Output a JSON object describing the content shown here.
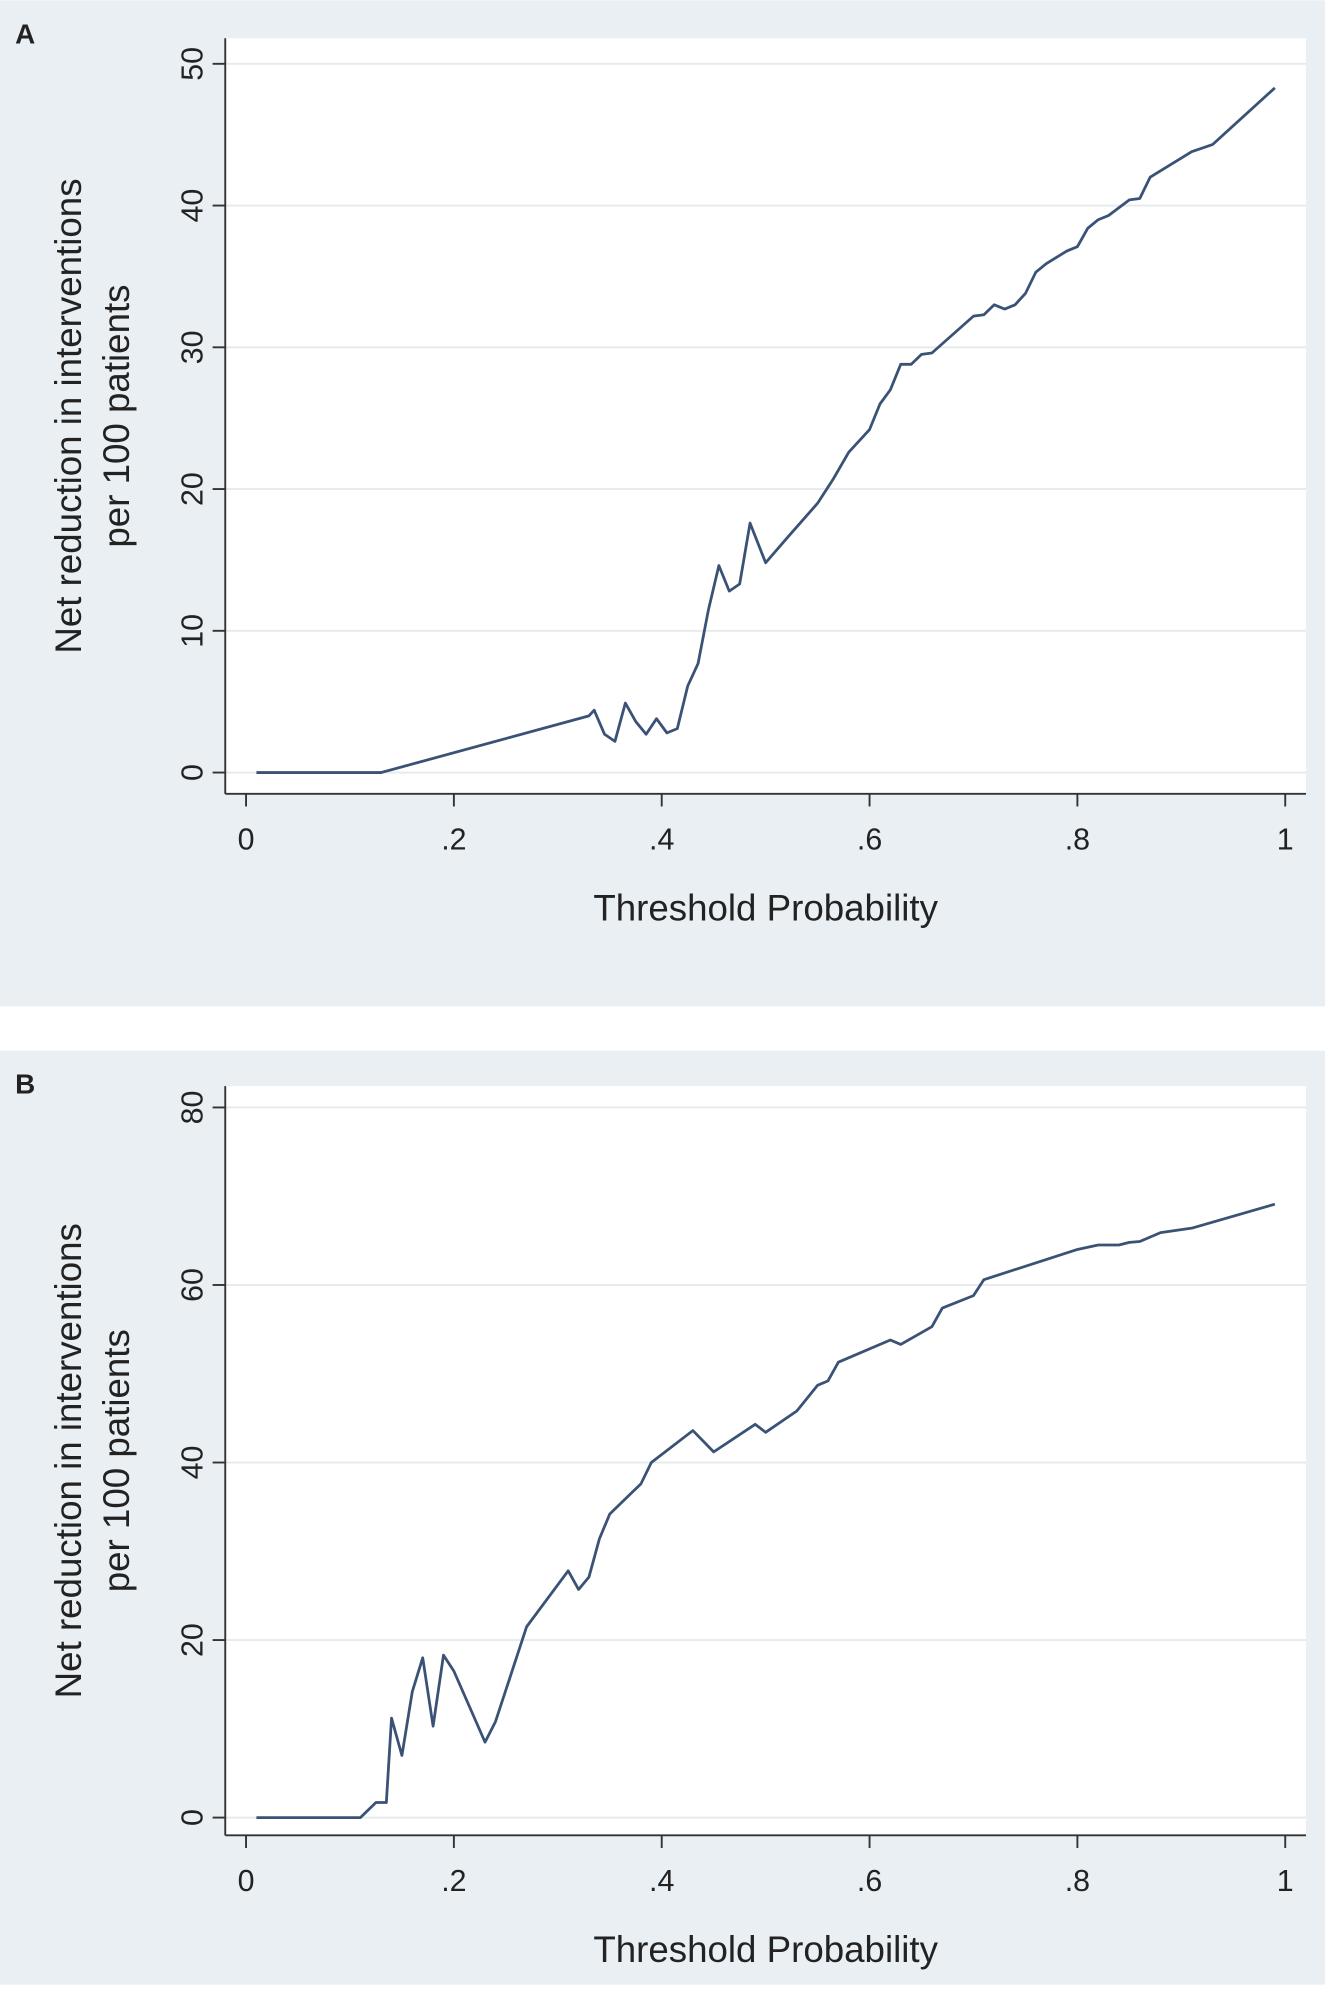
{
  "chart_data": [
    {
      "type": "line",
      "label": "A",
      "xlabel": "Threshold Probability",
      "ylabel": [
        "Net reduction in interventions",
        "per 100 patients"
      ],
      "xlim": [
        -0.02,
        1.02
      ],
      "ylim": [
        -1.5,
        51.8
      ],
      "xticks": [
        0,
        {
          "value": 0.2,
          "label": ".2"
        },
        {
          "value": 0.4,
          "label": ".4"
        },
        {
          "value": 0.6,
          "label": ".6"
        },
        {
          "value": 0.8,
          "label": ".8"
        },
        1
      ],
      "yticks": [
        0,
        10,
        20,
        30,
        40,
        50
      ],
      "grid": true,
      "series": [
        {
          "color": "#3a5275",
          "x": [
            0.01,
            0.13,
            0.33,
            0.335,
            0.345,
            0.355,
            0.365,
            0.375,
            0.385,
            0.395,
            0.405,
            0.415,
            0.425,
            0.435,
            0.445,
            0.455,
            0.465,
            0.475,
            0.485,
            0.5,
            0.52,
            0.55,
            0.565,
            0.58,
            0.6,
            0.61,
            0.62,
            0.63,
            0.64,
            0.65,
            0.66,
            0.7,
            0.71,
            0.72,
            0.73,
            0.74,
            0.75,
            0.76,
            0.77,
            0.79,
            0.8,
            0.81,
            0.82,
            0.83,
            0.85,
            0.86,
            0.87,
            0.89,
            0.91,
            0.93,
            0.99
          ],
          "values": [
            0,
            0,
            4.0,
            4.4,
            2.7,
            2.2,
            4.9,
            3.6,
            2.7,
            3.8,
            2.8,
            3.1,
            6.1,
            7.7,
            11.5,
            14.6,
            12.8,
            13.3,
            17.6,
            14.8,
            16.5,
            19.0,
            20.7,
            22.6,
            24.2,
            26.0,
            27.0,
            28.8,
            28.8,
            29.5,
            29.6,
            32.2,
            32.3,
            33.0,
            32.7,
            33.0,
            33.8,
            35.3,
            35.9,
            36.8,
            37.1,
            38.4,
            39.0,
            39.3,
            40.4,
            40.5,
            42.0,
            42.9,
            43.8,
            44.3,
            48.3
          ]
        }
      ]
    },
    {
      "type": "line",
      "label": "B",
      "xlabel": "Threshold Probability",
      "ylabel": [
        "Net reduction in interventions",
        "per 100 patients"
      ],
      "xlim": [
        -0.02,
        1.02
      ],
      "ylim": [
        -2,
        82.4
      ],
      "xticks": [
        0,
        {
          "value": 0.2,
          "label": ".2"
        },
        {
          "value": 0.4,
          "label": ".4"
        },
        {
          "value": 0.6,
          "label": ".6"
        },
        {
          "value": 0.8,
          "label": ".8"
        },
        1
      ],
      "yticks": [
        0,
        20,
        40,
        60,
        80
      ],
      "grid": true,
      "series": [
        {
          "color": "#3a5275",
          "x": [
            0.01,
            0.11,
            0.125,
            0.135,
            0.14,
            0.15,
            0.16,
            0.17,
            0.18,
            0.19,
            0.2,
            0.23,
            0.24,
            0.27,
            0.31,
            0.32,
            0.33,
            0.34,
            0.35,
            0.38,
            0.39,
            0.43,
            0.45,
            0.49,
            0.5,
            0.53,
            0.55,
            0.56,
            0.57,
            0.62,
            0.63,
            0.66,
            0.67,
            0.7,
            0.71,
            0.8,
            0.82,
            0.84,
            0.85,
            0.86,
            0.88,
            0.91,
            0.99
          ],
          "values": [
            0,
            0,
            1.7,
            1.7,
            11.2,
            7.0,
            14.2,
            18.0,
            10.3,
            18.3,
            16.5,
            8.5,
            10.8,
            21.5,
            27.8,
            25.7,
            27.1,
            31.4,
            34.2,
            37.6,
            40.0,
            43.6,
            41.2,
            44.3,
            43.4,
            45.8,
            48.7,
            49.2,
            51.3,
            53.8,
            53.3,
            55.3,
            57.4,
            58.8,
            60.6,
            64.0,
            64.5,
            64.5,
            64.8,
            64.9,
            65.9,
            66.4,
            69.1
          ]
        }
      ]
    }
  ]
}
